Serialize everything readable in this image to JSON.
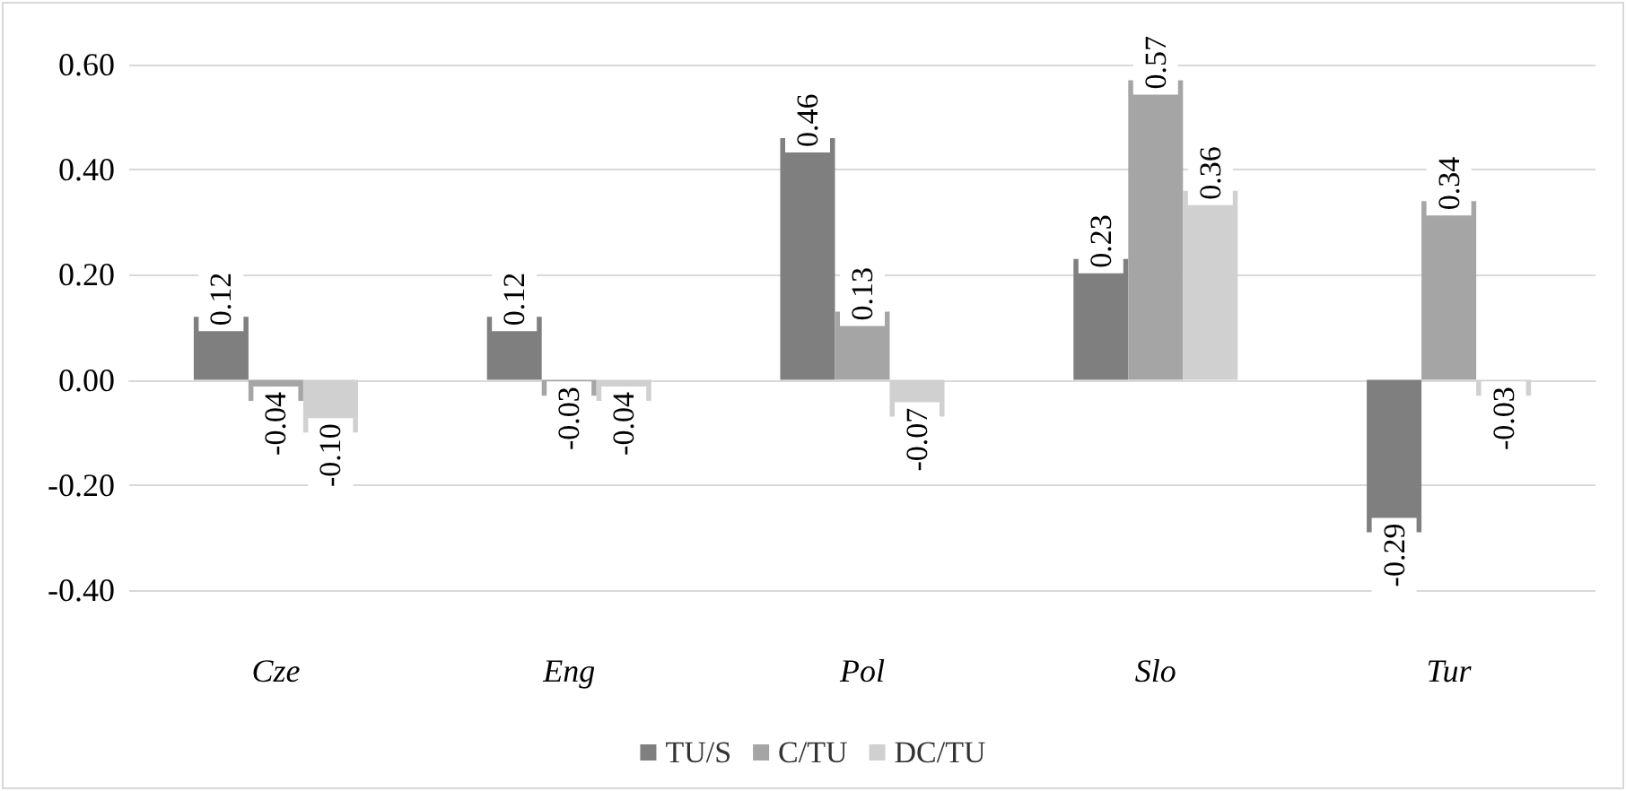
{
  "chart_data": {
    "type": "bar",
    "categories": [
      "Cze",
      "Eng",
      "Pol",
      "Slo",
      "Tur"
    ],
    "series": [
      {
        "name": "TU/S",
        "color": "#7f7f7f",
        "values": [
          0.12,
          0.12,
          0.46,
          0.23,
          -0.29
        ],
        "value_labels": [
          "0.12",
          "0.12",
          "0.46",
          "0.23",
          "-0.29"
        ]
      },
      {
        "name": "C/TU",
        "color": "#a5a5a5",
        "values": [
          -0.04,
          -0.03,
          0.13,
          0.57,
          0.34
        ],
        "value_labels": [
          "-0.04",
          "-0.03",
          "0.13",
          "0.57",
          "0.34"
        ]
      },
      {
        "name": "DC/TU",
        "color": "#d0d0d0",
        "values": [
          -0.1,
          -0.04,
          -0.07,
          0.36,
          -0.03
        ],
        "value_labels": [
          "-0.10",
          "-0.04",
          "-0.07",
          "0.36",
          "-0.03"
        ]
      }
    ],
    "ylim": [
      -0.4,
      0.6
    ],
    "yticks": [
      {
        "value": -0.4,
        "label": "-0.40"
      },
      {
        "value": -0.2,
        "label": "-0.20"
      },
      {
        "value": 0,
        "label": "0.00"
      },
      {
        "value": 0.2,
        "label": "0.20"
      },
      {
        "value": 0.4,
        "label": "0.40"
      },
      {
        "value": 0.6,
        "label": "0.60"
      }
    ],
    "grid": true,
    "legend": "bottom"
  }
}
